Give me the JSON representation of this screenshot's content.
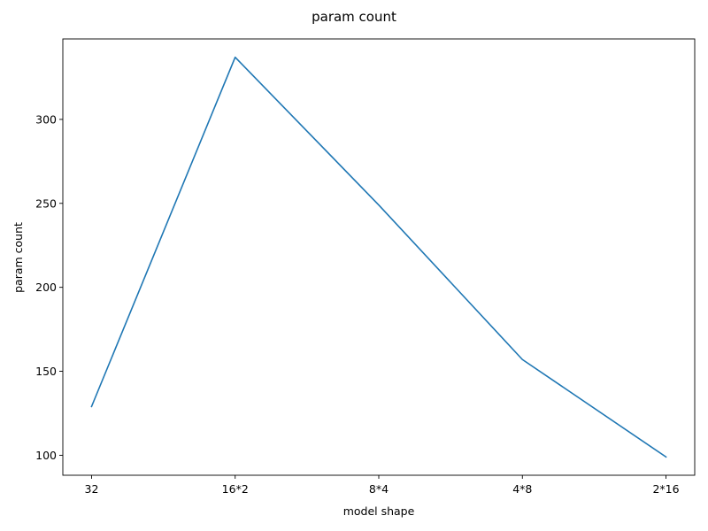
{
  "chart_data": {
    "type": "line",
    "title": "param count",
    "xlabel": "model shape",
    "ylabel": "param count",
    "categories": [
      "32",
      "16*2",
      "8*4",
      "4*8",
      "2*16"
    ],
    "series": [
      {
        "values": [
          129,
          337,
          249,
          157,
          99
        ],
        "color": "#1f77b4"
      }
    ],
    "ylim": [
      88.1,
      347.9
    ],
    "yticks": [
      100,
      150,
      200,
      250,
      300
    ],
    "grid": false,
    "legend": "none"
  }
}
